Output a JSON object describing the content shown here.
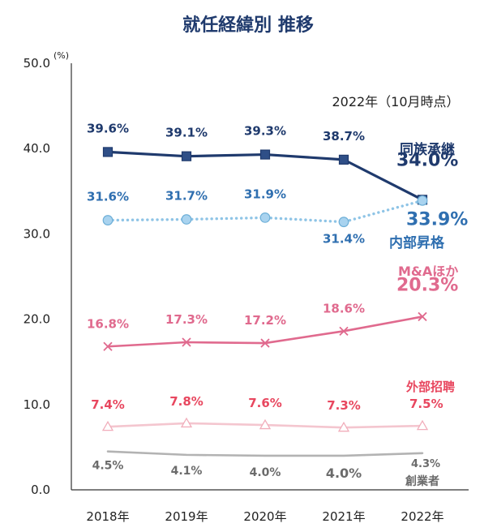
{
  "chart_data": {
    "type": "line",
    "title": "就任経緯別 推移",
    "y_unit": "(%)",
    "annotation": "2022年（10月時点）",
    "categories": [
      "2018年",
      "2019年",
      "2020年",
      "2021年",
      "2022年"
    ],
    "y_ticks": [
      "0.0",
      "10.0",
      "20.0",
      "30.0",
      "40.0",
      "50.0"
    ],
    "ylim": [
      0,
      50
    ],
    "grid": false,
    "series": [
      {
        "name": "同族承継",
        "values": [
          39.6,
          39.1,
          39.3,
          38.7,
          34.0
        ],
        "labels": [
          "39.6%",
          "39.1%",
          "39.3%",
          "38.7%",
          "34.0%"
        ],
        "color": "#1f3a6d",
        "style": "solid",
        "marker": "square"
      },
      {
        "name": "内部昇格",
        "values": [
          31.6,
          31.7,
          31.9,
          31.4,
          33.9
        ],
        "labels": [
          "31.6%",
          "31.7%",
          "31.9%",
          "31.4%",
          "33.9%"
        ],
        "color": "#8ec4e6",
        "label_color": "#2f6fb0",
        "style": "dotted",
        "marker": "circle"
      },
      {
        "name": "M&Aほか",
        "values": [
          16.8,
          17.3,
          17.2,
          18.6,
          20.3
        ],
        "labels": [
          "16.8%",
          "17.3%",
          "17.2%",
          "18.6%",
          "20.3%"
        ],
        "color": "#e06a8e",
        "style": "solid",
        "marker": "x"
      },
      {
        "name": "外部招聘",
        "values": [
          7.4,
          7.8,
          7.6,
          7.3,
          7.5
        ],
        "labels": [
          "7.4%",
          "7.8%",
          "7.6%",
          "7.3%",
          "7.5%"
        ],
        "color": "#f4c6cf",
        "label_color": "#e8475f",
        "style": "solid",
        "marker": "triangle"
      },
      {
        "name": "創業者",
        "values": [
          4.5,
          4.1,
          4.0,
          4.0,
          4.3
        ],
        "labels": [
          "4.5%",
          "4.1%",
          "4.0%",
          "4.0%",
          "4.3%"
        ],
        "color": "#b3b3b3",
        "label_color": "#6b6b6b",
        "style": "solid",
        "marker": "none"
      }
    ]
  }
}
